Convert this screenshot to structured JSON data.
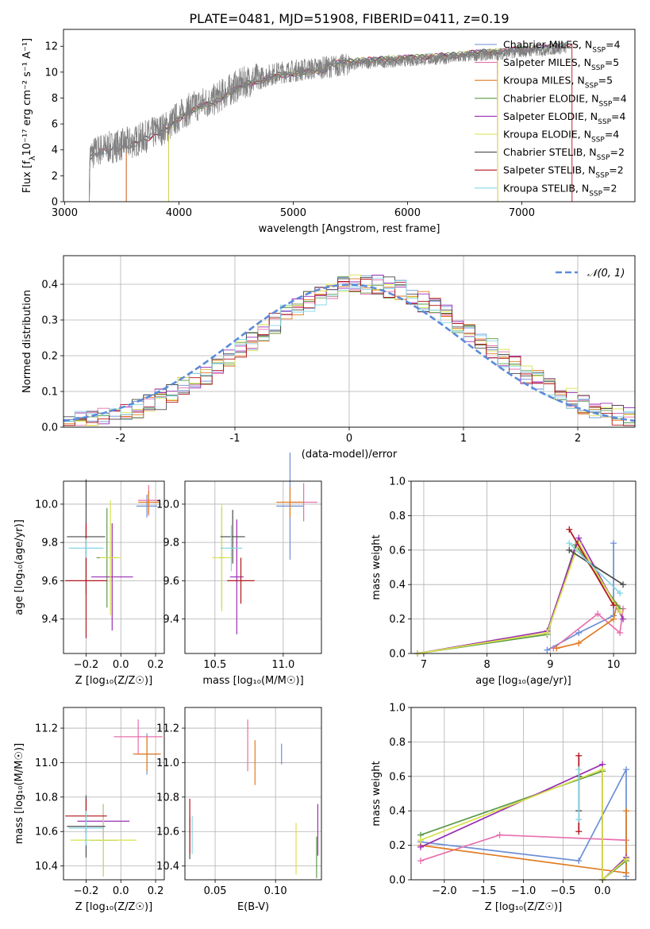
{
  "figure": {
    "title": "PLATE=0481, MJD=51908, FIBERID=0411, z=0.19"
  },
  "colors": {
    "Chabrier MILES": "#6b8fd6",
    "Salpeter MILES": "#e86fae",
    "Kroupa MILES": "#e07b22",
    "Chabrier ELODIE": "#5d9a4a",
    "Salpeter ELODIE": "#9a2fb3",
    "Kroupa ELODIE": "#d8e24a",
    "Chabrier STELIB": "#4a4a4a",
    "Salpeter STELIB": "#b0141c",
    "Kroupa STELIB": "#85d6e6",
    "data": "#808080",
    "normal_fit": "#5b8bd9",
    "grid": "#b0b0b0"
  },
  "chart_data": [
    {
      "id": "spectrum",
      "type": "line",
      "title": "PLATE=0481, MJD=51908, FIBERID=0411, z=0.19",
      "xlabel": "wavelength [Angstrom, rest frame]",
      "ylabel_main": "Flux [f",
      "ylabel_lambda": "λ",
      "ylabel_rest": "10⁻¹⁷ erg cm⁻² s⁻¹ A⁻¹]",
      "xlim": [
        2990,
        7990
      ],
      "ylim": [
        0,
        13.3
      ],
      "xticks": [
        3000,
        4000,
        5000,
        6000,
        7000
      ],
      "yticks": [
        0,
        2,
        4,
        6,
        8,
        10,
        12
      ],
      "grid": false,
      "legend_position": "top-right",
      "legend": [
        {
          "name": "Chabrier MILES",
          "n": "4"
        },
        {
          "name": "Salpeter MILES",
          "n": "5"
        },
        {
          "name": "Kroupa MILES",
          "n": "5"
        },
        {
          "name": "Chabrier ELODIE",
          "n": "4"
        },
        {
          "name": "Salpeter ELODIE",
          "n": "4"
        },
        {
          "name": "Kroupa ELODIE",
          "n": "4"
        },
        {
          "name": "Chabrier STELIB",
          "n": "2"
        },
        {
          "name": "Salpeter STELIB",
          "n": "2"
        },
        {
          "name": "Kroupa STELIB",
          "n": "2"
        }
      ],
      "nssp_sub": "SSP",
      "data_range": [
        3215,
        7390
      ],
      "continuum": [
        [
          3215,
          0
        ],
        [
          3220,
          3.6
        ],
        [
          3300,
          4.0
        ],
        [
          3400,
          4.2
        ],
        [
          3500,
          4.4
        ],
        [
          3600,
          4.6
        ],
        [
          3700,
          5.0
        ],
        [
          3800,
          5.4
        ],
        [
          3900,
          5.8
        ],
        [
          4000,
          6.6
        ],
        [
          4100,
          7.2
        ],
        [
          4200,
          7.6
        ],
        [
          4300,
          7.8
        ],
        [
          4400,
          8.4
        ],
        [
          4500,
          8.9
        ],
        [
          4600,
          9.3
        ],
        [
          4700,
          9.5
        ],
        [
          4800,
          9.8
        ],
        [
          4900,
          10.0
        ],
        [
          5000,
          10.1
        ],
        [
          5200,
          10.3
        ],
        [
          5400,
          10.5
        ],
        [
          5600,
          10.7
        ],
        [
          5800,
          10.8
        ],
        [
          6000,
          10.9
        ],
        [
          6200,
          11.0
        ],
        [
          6400,
          11.1
        ],
        [
          6600,
          11.3
        ],
        [
          6800,
          11.4
        ],
        [
          7000,
          11.6
        ],
        [
          7200,
          11.7
        ],
        [
          7390,
          11.9
        ]
      ],
      "model_starts": [
        {
          "model": "Chabrier MILES",
          "start": 3540
        },
        {
          "model": "Salpeter MILES",
          "start": 3540
        },
        {
          "model": "Kroupa MILES",
          "start": 3540
        },
        {
          "model": "Chabrier ELODIE",
          "start": 3910
        },
        {
          "model": "Salpeter ELODIE",
          "start": 3910
        },
        {
          "model": "Kroupa ELODIE",
          "start": 3910
        },
        {
          "model": "Chabrier STELIB",
          "start": 3215
        },
        {
          "model": "Salpeter STELIB",
          "start": 3215
        },
        {
          "model": "Kroupa STELIB",
          "start": 3215
        }
      ],
      "model_ends": [
        {
          "model": "Salpeter MILES",
          "end": 6790
        },
        {
          "model": "Kroupa ELODIE",
          "end": 6790
        },
        {
          "model": "Salpeter STELIB",
          "end": 7440
        }
      ]
    },
    {
      "id": "residual-histogram",
      "type": "area",
      "xlabel": "(data-model)/error",
      "ylabel": "Normed distribution",
      "xlim": [
        -2.5,
        2.5
      ],
      "ylim": [
        0,
        0.48
      ],
      "xticks": [
        -2,
        -1,
        0,
        1,
        2
      ],
      "yticks": [
        0.0,
        0.1,
        0.2,
        0.3,
        0.4
      ],
      "grid": true,
      "legend_position": "top-right",
      "legend_label": "𝒩(0, 1)",
      "bin_width": 0.1,
      "bins_start": -2.5,
      "bins_end": 2.5
    },
    {
      "id": "age-vs-Z",
      "type": "scatter",
      "xlabel": "Z [log₁₀(Z/Z☉)]",
      "ylabel": "age  [log₁₀(age/yr)]",
      "xlim": [
        -0.33,
        0.25
      ],
      "ylim": [
        9.22,
        10.12
      ],
      "xticks": [
        -0.2,
        0.0,
        0.2
      ],
      "xticklabels": [
        "−0.2",
        "0.0",
        "0.2"
      ],
      "yticks": [
        9.4,
        9.6,
        9.8,
        10.0
      ],
      "grid": true,
      "points": [
        {
          "model": "Chabrier MILES",
          "x": 0.15,
          "y": 9.99,
          "xerr": 0.06,
          "yerr": 0.06
        },
        {
          "model": "Salpeter MILES",
          "x": 0.16,
          "y": 10.02,
          "xerr": 0.06,
          "yerr": 0.08
        },
        {
          "model": "Kroupa MILES",
          "x": 0.16,
          "y": 10.01,
          "xerr": 0.06,
          "yerr": 0.06
        },
        {
          "model": "Chabrier ELODIE",
          "x": -0.08,
          "y": 9.72,
          "xerr": 0.06,
          "yerr": 0.26
        },
        {
          "model": "Salpeter ELODIE",
          "x": -0.05,
          "y": 9.62,
          "xerr": 0.12,
          "yerr": 0.28
        },
        {
          "model": "Kroupa ELODIE",
          "x": -0.06,
          "y": 9.72,
          "xerr": 0.06,
          "yerr": 0.3
        },
        {
          "model": "Chabrier STELIB",
          "x": -0.2,
          "y": 9.83,
          "xerr": 0.11,
          "yerr": 0.3
        },
        {
          "model": "Salpeter STELIB",
          "x": -0.2,
          "y": 9.6,
          "xerr": 0.12,
          "yerr": 0.3
        },
        {
          "model": "Kroupa STELIB",
          "x": -0.2,
          "y": 9.77,
          "xerr": 0.1,
          "yerr": 0.05
        }
      ]
    },
    {
      "id": "age-vs-mass",
      "type": "scatter",
      "xlabel": "mass [log₁₀(M/M☉)]",
      "xlim": [
        10.28,
        11.28
      ],
      "ylim": [
        9.22,
        10.12
      ],
      "xticks": [
        10.5,
        11.0
      ],
      "yticks": [
        9.4,
        9.6,
        9.8,
        10.0
      ],
      "grid": true,
      "points": [
        {
          "model": "Chabrier MILES",
          "x": 11.05,
          "y": 9.99,
          "xerr": 0.1,
          "yerr": 0.28
        },
        {
          "model": "Salpeter MILES",
          "x": 11.15,
          "y": 10.01,
          "xerr": 0.1,
          "yerr": 0.1
        },
        {
          "model": "Kroupa MILES",
          "x": 11.05,
          "y": 10.01,
          "xerr": 0.1,
          "yerr": 0.08
        },
        {
          "model": "Chabrier ELODIE",
          "x": 10.55,
          "y": 9.72,
          "xerr": 0.02,
          "yerr": 0.26
        },
        {
          "model": "Salpeter ELODIE",
          "x": 10.66,
          "y": 9.62,
          "xerr": 0.05,
          "yerr": 0.3
        },
        {
          "model": "Kroupa ELODIE",
          "x": 10.55,
          "y": 9.72,
          "xerr": 0.07,
          "yerr": 0.28
        },
        {
          "model": "Chabrier STELIB",
          "x": 10.63,
          "y": 9.83,
          "xerr": 0.09,
          "yerr": 0.14
        },
        {
          "model": "Salpeter STELIB",
          "x": 10.69,
          "y": 9.6,
          "xerr": 0.1,
          "yerr": 0.12
        },
        {
          "model": "Kroupa STELIB",
          "x": 10.62,
          "y": 9.77,
          "xerr": 0.08,
          "yerr": 0.12
        }
      ]
    },
    {
      "id": "mass-weight-vs-age",
      "type": "line",
      "xlabel": "age  [log₁₀(age/yr)]",
      "ylabel": "mass weight",
      "xlim": [
        6.8,
        10.35
      ],
      "ylim": [
        0.0,
        1.0
      ],
      "xticks": [
        7,
        8,
        9,
        10
      ],
      "yticks": [
        0.0,
        0.2,
        0.4,
        0.6,
        0.8,
        1.0
      ],
      "grid": true,
      "series": [
        {
          "name": "Chabrier MILES",
          "points": [
            [
              8.95,
              0.02
            ],
            [
              9.45,
              0.12
            ],
            [
              10.0,
              0.22
            ],
            [
              10.0,
              0.64
            ]
          ]
        },
        {
          "name": "Salpeter MILES",
          "points": [
            [
              9.05,
              0.03
            ],
            [
              9.75,
              0.23
            ],
            [
              10.1,
              0.12
            ],
            [
              10.15,
              0.26
            ]
          ]
        },
        {
          "name": "Kroupa MILES",
          "points": [
            [
              9.1,
              0.03
            ],
            [
              9.45,
              0.06
            ],
            [
              10.0,
              0.2
            ],
            [
              10.05,
              0.28
            ]
          ]
        },
        {
          "name": "Chabrier ELODIE",
          "points": [
            [
              6.9,
              0.0
            ],
            [
              8.95,
              0.11
            ],
            [
              9.4,
              0.63
            ],
            [
              10.1,
              0.26
            ]
          ]
        },
        {
          "name": "Salpeter ELODIE",
          "points": [
            [
              6.9,
              0.0
            ],
            [
              8.95,
              0.13
            ],
            [
              9.45,
              0.67
            ],
            [
              10.15,
              0.2
            ]
          ]
        },
        {
          "name": "Kroupa ELODIE",
          "points": [
            [
              6.9,
              0.0
            ],
            [
              8.95,
              0.12
            ],
            [
              9.45,
              0.64
            ],
            [
              10.1,
              0.24
            ]
          ]
        },
        {
          "name": "Chabrier STELIB",
          "points": [
            [
              9.3,
              0.6
            ],
            [
              10.15,
              0.4
            ]
          ]
        },
        {
          "name": "Salpeter STELIB",
          "points": [
            [
              9.3,
              0.72
            ],
            [
              10.0,
              0.28
            ]
          ]
        },
        {
          "name": "Kroupa STELIB",
          "points": [
            [
              9.3,
              0.64
            ],
            [
              10.1,
              0.35
            ]
          ]
        }
      ]
    },
    {
      "id": "mass-vs-Z",
      "type": "scatter",
      "xlabel": "Z [log₁₀(Z/Z☉)]",
      "ylabel": "mass [log₁₀(M/M☉)]",
      "xlim": [
        -0.33,
        0.25
      ],
      "ylim": [
        10.32,
        11.32
      ],
      "xticks": [
        -0.2,
        0.0,
        0.2
      ],
      "xticklabels": [
        "−0.2",
        "0.0",
        "0.2"
      ],
      "yticks": [
        10.4,
        10.6,
        10.8,
        11.0,
        11.2
      ],
      "grid": true,
      "points": [
        {
          "model": "Chabrier MILES",
          "x": 0.15,
          "y": 11.05,
          "xerr": 0.06,
          "yerr": 0.12
        },
        {
          "model": "Salpeter MILES",
          "x": 0.1,
          "y": 11.15,
          "xerr": 0.14,
          "yerr": 0.1
        },
        {
          "model": "Kroupa MILES",
          "x": 0.15,
          "y": 11.05,
          "xerr": 0.08,
          "yerr": 0.1
        },
        {
          "model": "Chabrier ELODIE",
          "x": -0.1,
          "y": 10.55,
          "xerr": 0.08,
          "yerr": 0.21
        },
        {
          "model": "Salpeter ELODIE",
          "x": -0.1,
          "y": 10.66,
          "xerr": 0.15,
          "yerr": 0.1
        },
        {
          "model": "Kroupa ELODIE",
          "x": -0.1,
          "y": 10.55,
          "xerr": 0.19,
          "yerr": 0.21
        },
        {
          "model": "Chabrier STELIB",
          "x": -0.2,
          "y": 10.63,
          "xerr": 0.11,
          "yerr": 0.18
        },
        {
          "model": "Salpeter STELIB",
          "x": -0.2,
          "y": 10.69,
          "xerr": 0.12,
          "yerr": 0.1
        },
        {
          "model": "Kroupa STELIB",
          "x": -0.2,
          "y": 10.62,
          "xerr": 0.1,
          "yerr": 0.1
        }
      ]
    },
    {
      "id": "mass-vs-EBV",
      "type": "scatter",
      "xlabel": "E(B-V)",
      "xlim": [
        0.025,
        0.138
      ],
      "ylim": [
        10.32,
        11.32
      ],
      "xticks": [
        0.05,
        0.1
      ],
      "xticklabels": [
        "0.05",
        "0.10"
      ],
      "yticks": [
        10.4,
        10.6,
        10.8,
        11.0,
        11.2
      ],
      "grid": true,
      "points": [
        {
          "model": "Chabrier MILES",
          "x": 0.105,
          "y": 11.05,
          "yerr": 0.06
        },
        {
          "model": "Salpeter MILES",
          "x": 0.077,
          "y": 11.1,
          "yerr": 0.15
        },
        {
          "model": "Kroupa MILES",
          "x": 0.083,
          "y": 11.0,
          "yerr": 0.13
        },
        {
          "model": "Chabrier ELODIE",
          "x": 0.134,
          "y": 10.45,
          "yerr": 0.12
        },
        {
          "model": "Salpeter ELODIE",
          "x": 0.135,
          "y": 10.61,
          "yerr": 0.15
        },
        {
          "model": "Kroupa ELODIE",
          "x": 0.117,
          "y": 10.5,
          "yerr": 0.15
        },
        {
          "model": "Chabrier STELIB",
          "x": 0.029,
          "y": 10.56,
          "yerr": 0.12
        },
        {
          "model": "Salpeter STELIB",
          "x": 0.029,
          "y": 10.63,
          "yerr": 0.16
        },
        {
          "model": "Kroupa STELIB",
          "x": 0.031,
          "y": 10.58,
          "yerr": 0.11
        }
      ]
    },
    {
      "id": "mass-weight-vs-Z",
      "type": "line",
      "xlabel": "Z [log₁₀(Z/Z☉)]",
      "ylabel": "mass weight",
      "xlim": [
        -2.42,
        0.42
      ],
      "ylim": [
        0.0,
        1.0
      ],
      "xticks": [
        -2.0,
        -1.5,
        -1.0,
        -0.5,
        0.0
      ],
      "xticklabels": [
        "−2.0",
        "−1.5",
        "−1.0",
        "−0.5",
        "0.0"
      ],
      "yticks": [
        0.0,
        0.2,
        0.4,
        0.6,
        0.8,
        1.0
      ],
      "grid": true,
      "series": [
        {
          "name": "Chabrier MILES",
          "points": [
            [
              -2.3,
              0.22
            ],
            [
              -0.3,
              0.11
            ],
            [
              0.3,
              0.64
            ],
            [
              0.3,
              0.02
            ]
          ]
        },
        {
          "name": "Salpeter MILES",
          "points": [
            [
              -2.3,
              0.11
            ],
            [
              -1.3,
              0.26
            ],
            [
              0.3,
              0.23
            ]
          ]
        },
        {
          "name": "Kroupa MILES",
          "points": [
            [
              -2.3,
              0.2
            ],
            [
              0.3,
              0.04
            ],
            [
              0.3,
              0.4
            ]
          ]
        },
        {
          "name": "Chabrier ELODIE",
          "points": [
            [
              -2.3,
              0.26
            ],
            [
              0.0,
              0.63
            ],
            [
              0.0,
              0.0
            ],
            [
              0.3,
              0.11
            ]
          ]
        },
        {
          "name": "Salpeter ELODIE",
          "points": [
            [
              -2.3,
              0.19
            ],
            [
              0.0,
              0.67
            ],
            [
              0.0,
              0.0
            ],
            [
              0.3,
              0.13
            ]
          ]
        },
        {
          "name": "Kroupa ELODIE",
          "points": [
            [
              -2.3,
              0.23
            ],
            [
              0.0,
              0.64
            ],
            [
              0.0,
              0.0
            ],
            [
              0.3,
              0.12
            ]
          ]
        },
        {
          "name": "Chabrier STELIB",
          "points": [
            [
              -0.3,
              0.6
            ],
            [
              -0.3,
              0.4
            ]
          ]
        },
        {
          "name": "Salpeter STELIB",
          "points": [
            [
              -0.3,
              0.72
            ],
            [
              -0.3,
              0.28
            ]
          ]
        },
        {
          "name": "Kroupa STELIB",
          "points": [
            [
              -0.3,
              0.64
            ],
            [
              -0.3,
              0.35
            ]
          ]
        }
      ]
    }
  ]
}
